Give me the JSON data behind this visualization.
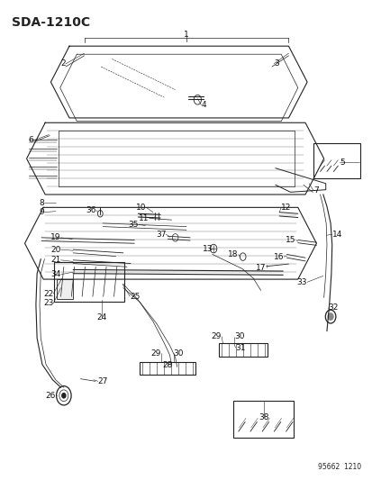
{
  "title": "SDA-1210C",
  "part_number": "95662  1210",
  "bg_color": "#ffffff",
  "line_color": "#222222",
  "label_color": "#111111",
  "fig_width": 4.14,
  "fig_height": 5.33,
  "dpi": 100
}
